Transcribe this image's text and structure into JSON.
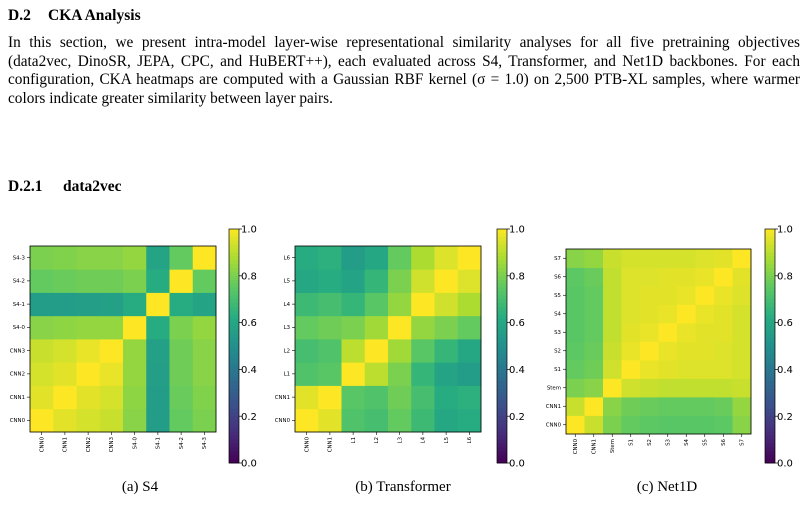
{
  "section": {
    "number": "D.2",
    "title": "CKA Analysis",
    "paragraph": "In this section, we present intra-model layer-wise representational similarity analyses for all five pretraining objectives (data2vec, DinoSR, JEPA, CPC, and HuBERT++), each evaluated across S4, Transformer, and Net1D backbones. For each configuration, CKA heatmaps are computed with a Gaussian RBF kernel (σ = 1.0) on 2,500 PTB-XL samples, where warmer colors indicate greater similarity between layer pairs."
  },
  "subsection": {
    "number": "D.2.1",
    "title": "data2vec"
  },
  "colorbar": {
    "ticks": [
      "1.0",
      "0.8",
      "0.6",
      "0.4",
      "0.2",
      "0.0"
    ],
    "colormap": "viridis",
    "range": [
      0,
      1
    ]
  },
  "chart_data": [
    {
      "type": "heatmap",
      "caption": "(a) S4",
      "labels": [
        "CNN0",
        "CNN1",
        "CNN2",
        "CNN3",
        "S4-0",
        "S4-1",
        "S4-2",
        "S4-3"
      ],
      "matrix": [
        [
          1.0,
          0.96,
          0.94,
          0.92,
          0.82,
          0.55,
          0.76,
          0.8
        ],
        [
          0.96,
          1.0,
          0.96,
          0.94,
          0.83,
          0.55,
          0.77,
          0.81
        ],
        [
          0.94,
          0.96,
          1.0,
          0.97,
          0.84,
          0.56,
          0.78,
          0.82
        ],
        [
          0.92,
          0.94,
          0.97,
          1.0,
          0.84,
          0.57,
          0.78,
          0.82
        ],
        [
          0.82,
          0.83,
          0.84,
          0.84,
          1.0,
          0.62,
          0.8,
          0.84
        ],
        [
          0.55,
          0.55,
          0.56,
          0.57,
          0.62,
          1.0,
          0.62,
          0.58
        ],
        [
          0.76,
          0.77,
          0.78,
          0.78,
          0.8,
          0.62,
          1.0,
          0.76
        ],
        [
          0.8,
          0.81,
          0.82,
          0.82,
          0.84,
          0.58,
          0.76,
          1.0
        ]
      ],
      "vmin": 0,
      "vmax": 1
    },
    {
      "type": "heatmap",
      "caption": "(b) Transformer",
      "labels": [
        "CNN0",
        "CNN1",
        "L1",
        "L2",
        "L3",
        "L4",
        "L5",
        "L6"
      ],
      "matrix": [
        [
          1.0,
          0.96,
          0.72,
          0.7,
          0.76,
          0.68,
          0.6,
          0.62
        ],
        [
          0.96,
          1.0,
          0.74,
          0.72,
          0.78,
          0.7,
          0.62,
          0.64
        ],
        [
          0.72,
          0.74,
          1.0,
          0.9,
          0.8,
          0.66,
          0.58,
          0.55
        ],
        [
          0.7,
          0.72,
          0.9,
          1.0,
          0.86,
          0.74,
          0.66,
          0.6
        ],
        [
          0.76,
          0.78,
          0.8,
          0.86,
          1.0,
          0.84,
          0.8,
          0.76
        ],
        [
          0.68,
          0.7,
          0.66,
          0.74,
          0.84,
          1.0,
          0.93,
          0.88
        ],
        [
          0.6,
          0.62,
          0.58,
          0.66,
          0.8,
          0.93,
          1.0,
          0.95
        ],
        [
          0.62,
          0.64,
          0.55,
          0.6,
          0.76,
          0.88,
          0.95,
          1.0
        ]
      ],
      "vmin": 0,
      "vmax": 1
    },
    {
      "type": "heatmap",
      "caption": "(c) Net1D",
      "labels": [
        "CNN0",
        "CNN1",
        "Stem",
        "S1",
        "S2",
        "S3",
        "S4",
        "S5",
        "S6",
        "S7"
      ],
      "matrix": [
        [
          1.0,
          0.92,
          0.8,
          0.76,
          0.75,
          0.74,
          0.74,
          0.74,
          0.75,
          0.82
        ],
        [
          0.92,
          1.0,
          0.82,
          0.78,
          0.77,
          0.76,
          0.76,
          0.76,
          0.77,
          0.84
        ],
        [
          0.8,
          0.82,
          1.0,
          0.93,
          0.92,
          0.91,
          0.91,
          0.91,
          0.91,
          0.92
        ],
        [
          0.76,
          0.78,
          0.93,
          1.0,
          0.97,
          0.96,
          0.95,
          0.95,
          0.95,
          0.94
        ],
        [
          0.75,
          0.77,
          0.92,
          0.97,
          1.0,
          0.97,
          0.96,
          0.96,
          0.95,
          0.94
        ],
        [
          0.74,
          0.76,
          0.91,
          0.96,
          0.97,
          1.0,
          0.97,
          0.96,
          0.96,
          0.94
        ],
        [
          0.74,
          0.76,
          0.91,
          0.95,
          0.96,
          0.97,
          1.0,
          0.97,
          0.96,
          0.94
        ],
        [
          0.74,
          0.76,
          0.91,
          0.95,
          0.96,
          0.96,
          0.97,
          1.0,
          0.97,
          0.95
        ],
        [
          0.75,
          0.77,
          0.91,
          0.95,
          0.95,
          0.96,
          0.96,
          0.97,
          1.0,
          0.96
        ],
        [
          0.82,
          0.84,
          0.92,
          0.94,
          0.94,
          0.94,
          0.94,
          0.95,
          0.96,
          1.0
        ]
      ],
      "vmin": 0,
      "vmax": 1
    }
  ]
}
